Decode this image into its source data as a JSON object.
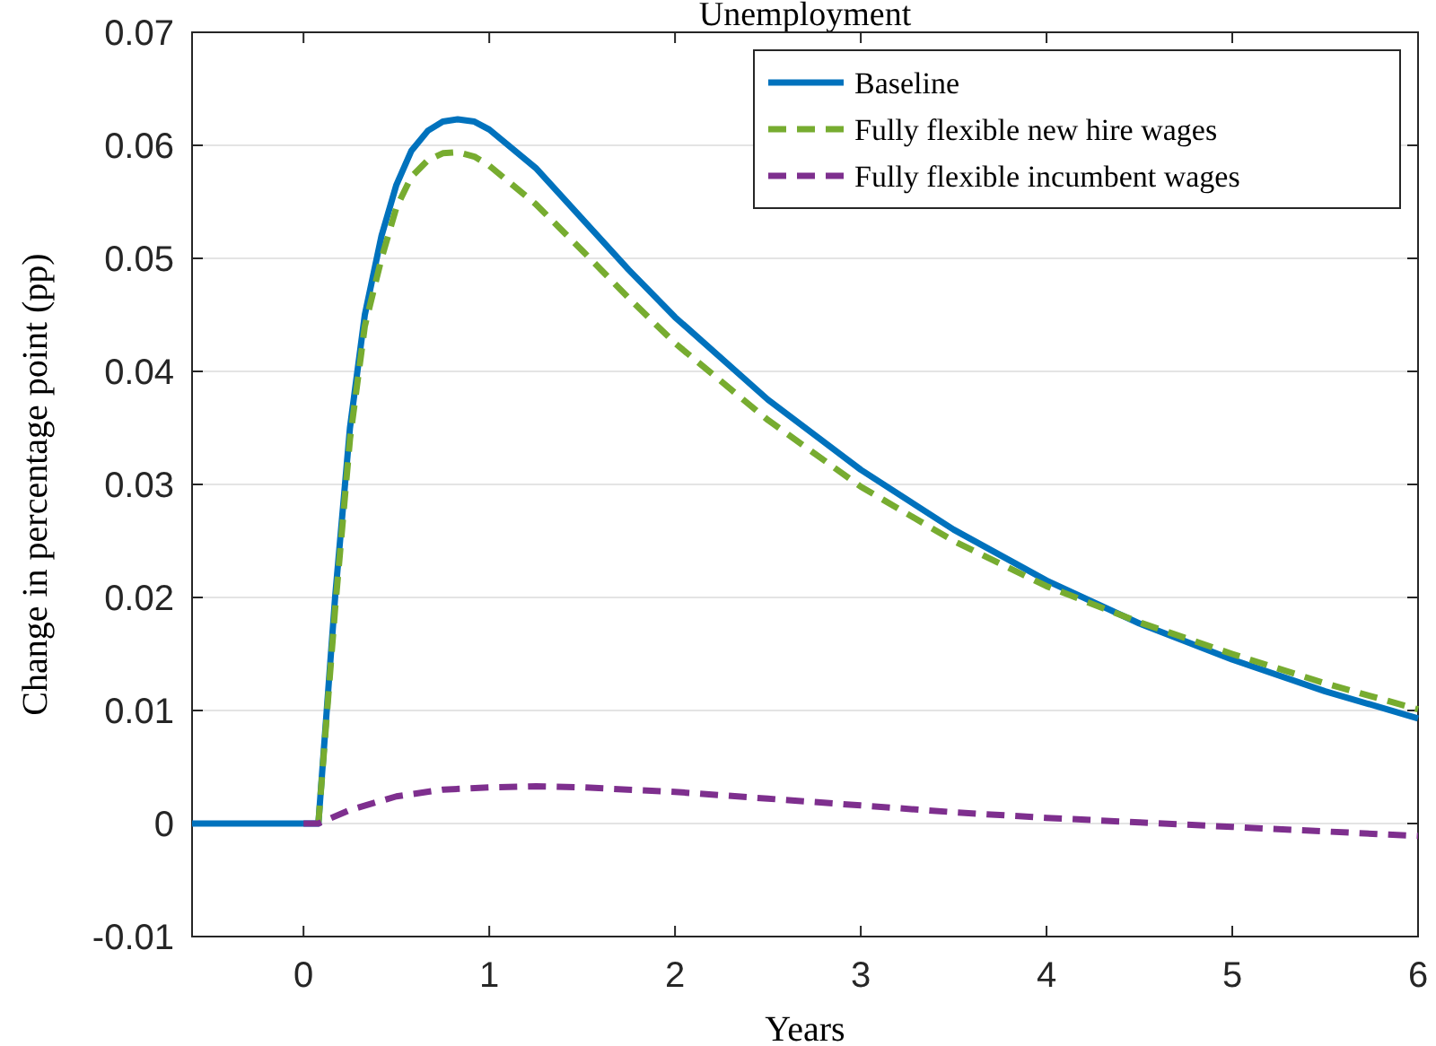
{
  "chart_data": {
    "type": "line",
    "title": "Unemployment",
    "xlabel": "Years",
    "ylabel": "Change in percentage point (pp)",
    "xlim": [
      -0.6,
      6
    ],
    "xticks": [
      0,
      1,
      2,
      3,
      4,
      5,
      6
    ],
    "ylim": [
      -0.01,
      0.07
    ],
    "yticks": [
      -0.01,
      0,
      0.01,
      0.02,
      0.03,
      0.04,
      0.05,
      0.06,
      0.07
    ],
    "grid": "y",
    "legend": "top right",
    "series": [
      {
        "name": "Baseline",
        "color": "#0072bd",
        "line_style": "solid",
        "x": [
          -0.6,
          0,
          0.08,
          0.17,
          0.25,
          0.33,
          0.42,
          0.5,
          0.58,
          0.67,
          0.75,
          0.83,
          0.92,
          1.0,
          1.25,
          1.5,
          1.75,
          2,
          2.5,
          3,
          3.5,
          4,
          4.5,
          5,
          5.5,
          6
        ],
        "values": [
          0,
          0,
          0,
          0.02,
          0.035,
          0.045,
          0.052,
          0.0565,
          0.0595,
          0.0613,
          0.0621,
          0.0623,
          0.0621,
          0.0614,
          0.058,
          0.0535,
          0.049,
          0.0448,
          0.0375,
          0.0313,
          0.026,
          0.0215,
          0.0177,
          0.0145,
          0.0117,
          0.0093
        ]
      },
      {
        "name": "Fully flexible new hire wages",
        "color": "#77ac30",
        "line_style": "dashed",
        "x": [
          0.08,
          0.17,
          0.25,
          0.33,
          0.42,
          0.5,
          0.58,
          0.67,
          0.75,
          0.83,
          0.92,
          1.0,
          1.25,
          1.5,
          1.75,
          2,
          2.5,
          3,
          3.5,
          4,
          4.5,
          5,
          5.5,
          6
        ],
        "values": [
          0,
          0.019,
          0.034,
          0.044,
          0.05,
          0.0545,
          0.0572,
          0.0587,
          0.0593,
          0.0594,
          0.059,
          0.0582,
          0.0548,
          0.0507,
          0.0465,
          0.0425,
          0.0357,
          0.0298,
          0.025,
          0.021,
          0.0178,
          0.015,
          0.0124,
          0.0101
        ]
      },
      {
        "name": "Fully flexible incumbent wages",
        "color": "#7e2f8e",
        "line_style": "dashed",
        "x": [
          0,
          0.08,
          0.25,
          0.5,
          0.75,
          1,
          1.25,
          1.5,
          2,
          2.5,
          3,
          3.5,
          4,
          4.5,
          5,
          5.5,
          6
        ],
        "values": [
          0,
          0,
          0.0012,
          0.0024,
          0.003,
          0.0032,
          0.0033,
          0.0032,
          0.0028,
          0.0022,
          0.0016,
          0.001,
          0.0005,
          0.0001,
          -0.0003,
          -0.0007,
          -0.0011
        ]
      }
    ]
  }
}
